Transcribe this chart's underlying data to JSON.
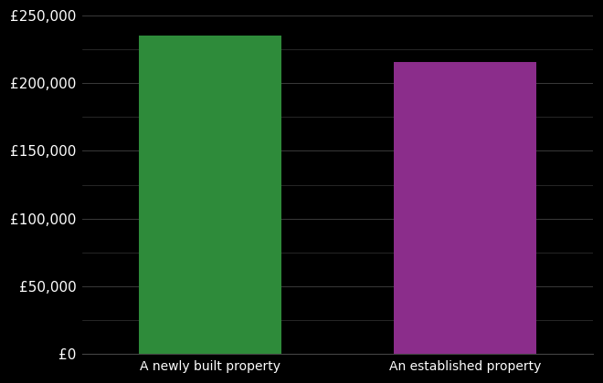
{
  "categories": [
    "A newly built property",
    "An established property"
  ],
  "values": [
    235000,
    216000
  ],
  "bar_colors": [
    "#2e8b3a",
    "#8b2d8b"
  ],
  "background_color": "#000000",
  "text_color": "#ffffff",
  "grid_color": "#444444",
  "ylim": [
    0,
    250000
  ],
  "yticks": [
    0,
    50000,
    100000,
    150000,
    200000,
    250000
  ],
  "minor_ytick_interval": 25000,
  "bar_width": 0.28,
  "x_positions": [
    0.25,
    0.75
  ],
  "xlim": [
    0,
    1
  ],
  "figsize": [
    6.6,
    4.2
  ],
  "dpi": 100,
  "tick_labelsize": 11,
  "xlabel_fontsize": 10
}
